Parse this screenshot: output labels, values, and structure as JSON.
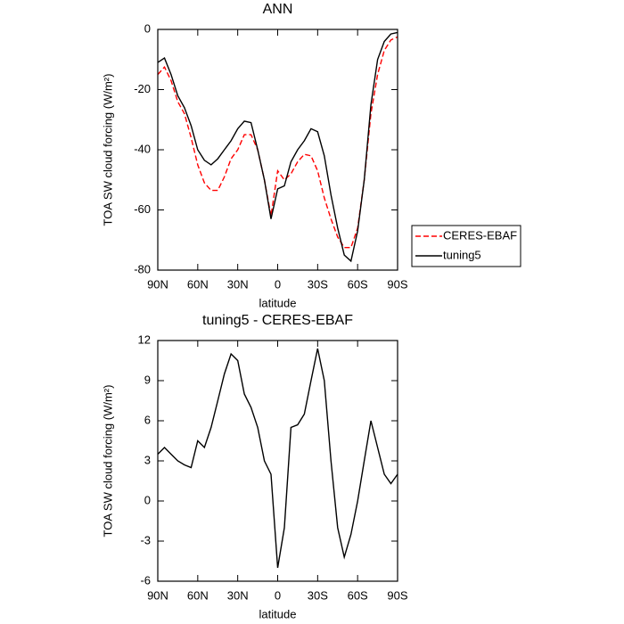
{
  "chart_data": [
    {
      "type": "line",
      "title": "ANN",
      "x_label": "latitude",
      "y_label": "TOA SW cloud forcing (W/m²)",
      "x": [
        90,
        85,
        80,
        75,
        70,
        65,
        60,
        55,
        50,
        45,
        40,
        35,
        30,
        25,
        20,
        15,
        10,
        5,
        0,
        -5,
        -10,
        -15,
        -20,
        -25,
        -30,
        -35,
        -40,
        -45,
        -50,
        -55,
        -60,
        -65,
        -70,
        -75,
        -80,
        -85,
        -90
      ],
      "series": [
        {
          "name": "CERES-EBAF",
          "color": "#ff0000",
          "dashed": true,
          "values": [
            -15,
            -12.5,
            -17,
            -24,
            -28,
            -36,
            -45,
            -51,
            -53.5,
            -53.5,
            -49,
            -43,
            -40,
            -35,
            -35,
            -40,
            -50,
            -62,
            -47,
            -50,
            -48,
            -44,
            -41.5,
            -42,
            -47,
            -56,
            -63,
            -69,
            -72.5,
            -72.5,
            -66,
            -50,
            -28,
            -15,
            -7,
            -3.5,
            -2.5
          ]
        },
        {
          "name": "tuning5",
          "color": "#000000",
          "dashed": false,
          "values": [
            -11,
            -9.5,
            -15,
            -22,
            -26,
            -32,
            -40,
            -43.5,
            -45,
            -43,
            -40,
            -37,
            -33,
            -30.5,
            -31,
            -40,
            -50,
            -63,
            -53,
            -52,
            -44,
            -40,
            -37,
            -33,
            -34,
            -42,
            -55,
            -66,
            -75,
            -77,
            -67,
            -50,
            -25,
            -10,
            -4,
            -1.5,
            -1
          ]
        }
      ],
      "xlim": [
        90,
        -90
      ],
      "xticks": [
        {
          "value": 90,
          "label": "90N"
        },
        {
          "value": 60,
          "label": "60N"
        },
        {
          "value": 30,
          "label": "30N"
        },
        0,
        {
          "value": -30,
          "label": "30S"
        },
        {
          "value": -60,
          "label": "60S"
        },
        {
          "value": -90,
          "label": "90S"
        }
      ],
      "ylim": [
        -80,
        0
      ],
      "yticks": [
        -80,
        -60,
        -40,
        -20,
        0
      ],
      "grid": false,
      "legend": "right"
    },
    {
      "type": "line",
      "title": "tuning5 - CERES-EBAF",
      "x_label": "latitude",
      "y_label": "TOA SW cloud forcing (W/m²)",
      "x": [
        90,
        85,
        80,
        75,
        70,
        65,
        60,
        55,
        50,
        45,
        40,
        35,
        30,
        25,
        20,
        15,
        10,
        5,
        0,
        -5,
        -10,
        -15,
        -20,
        -25,
        -30,
        -35,
        -40,
        -45,
        -50,
        -55,
        -60,
        -65,
        -70,
        -75,
        -80,
        -85,
        -90
      ],
      "color": "#000000",
      "values": [
        3.5,
        4,
        3.5,
        3,
        2.7,
        2.5,
        4.5,
        4,
        5.5,
        7.5,
        9.5,
        11,
        10.5,
        8,
        7,
        5.5,
        3,
        2,
        -5,
        -2,
        5.5,
        5.7,
        6.5,
        9,
        11.4,
        9,
        3,
        -2,
        -4.2,
        -2.5,
        0,
        3,
        6,
        4,
        2,
        1.3,
        2
      ],
      "xlim": [
        90,
        -90
      ],
      "xticks": [
        {
          "value": 90,
          "label": "90N"
        },
        {
          "value": 60,
          "label": "60N"
        },
        {
          "value": 30,
          "label": "30N"
        },
        0,
        {
          "value": -30,
          "label": "30S"
        },
        {
          "value": -60,
          "label": "60S"
        },
        {
          "value": -90,
          "label": "90S"
        }
      ],
      "ylim": [
        -6,
        12
      ],
      "yticks": [
        -6,
        -3,
        0,
        3,
        6,
        9,
        12
      ],
      "grid": false
    }
  ]
}
